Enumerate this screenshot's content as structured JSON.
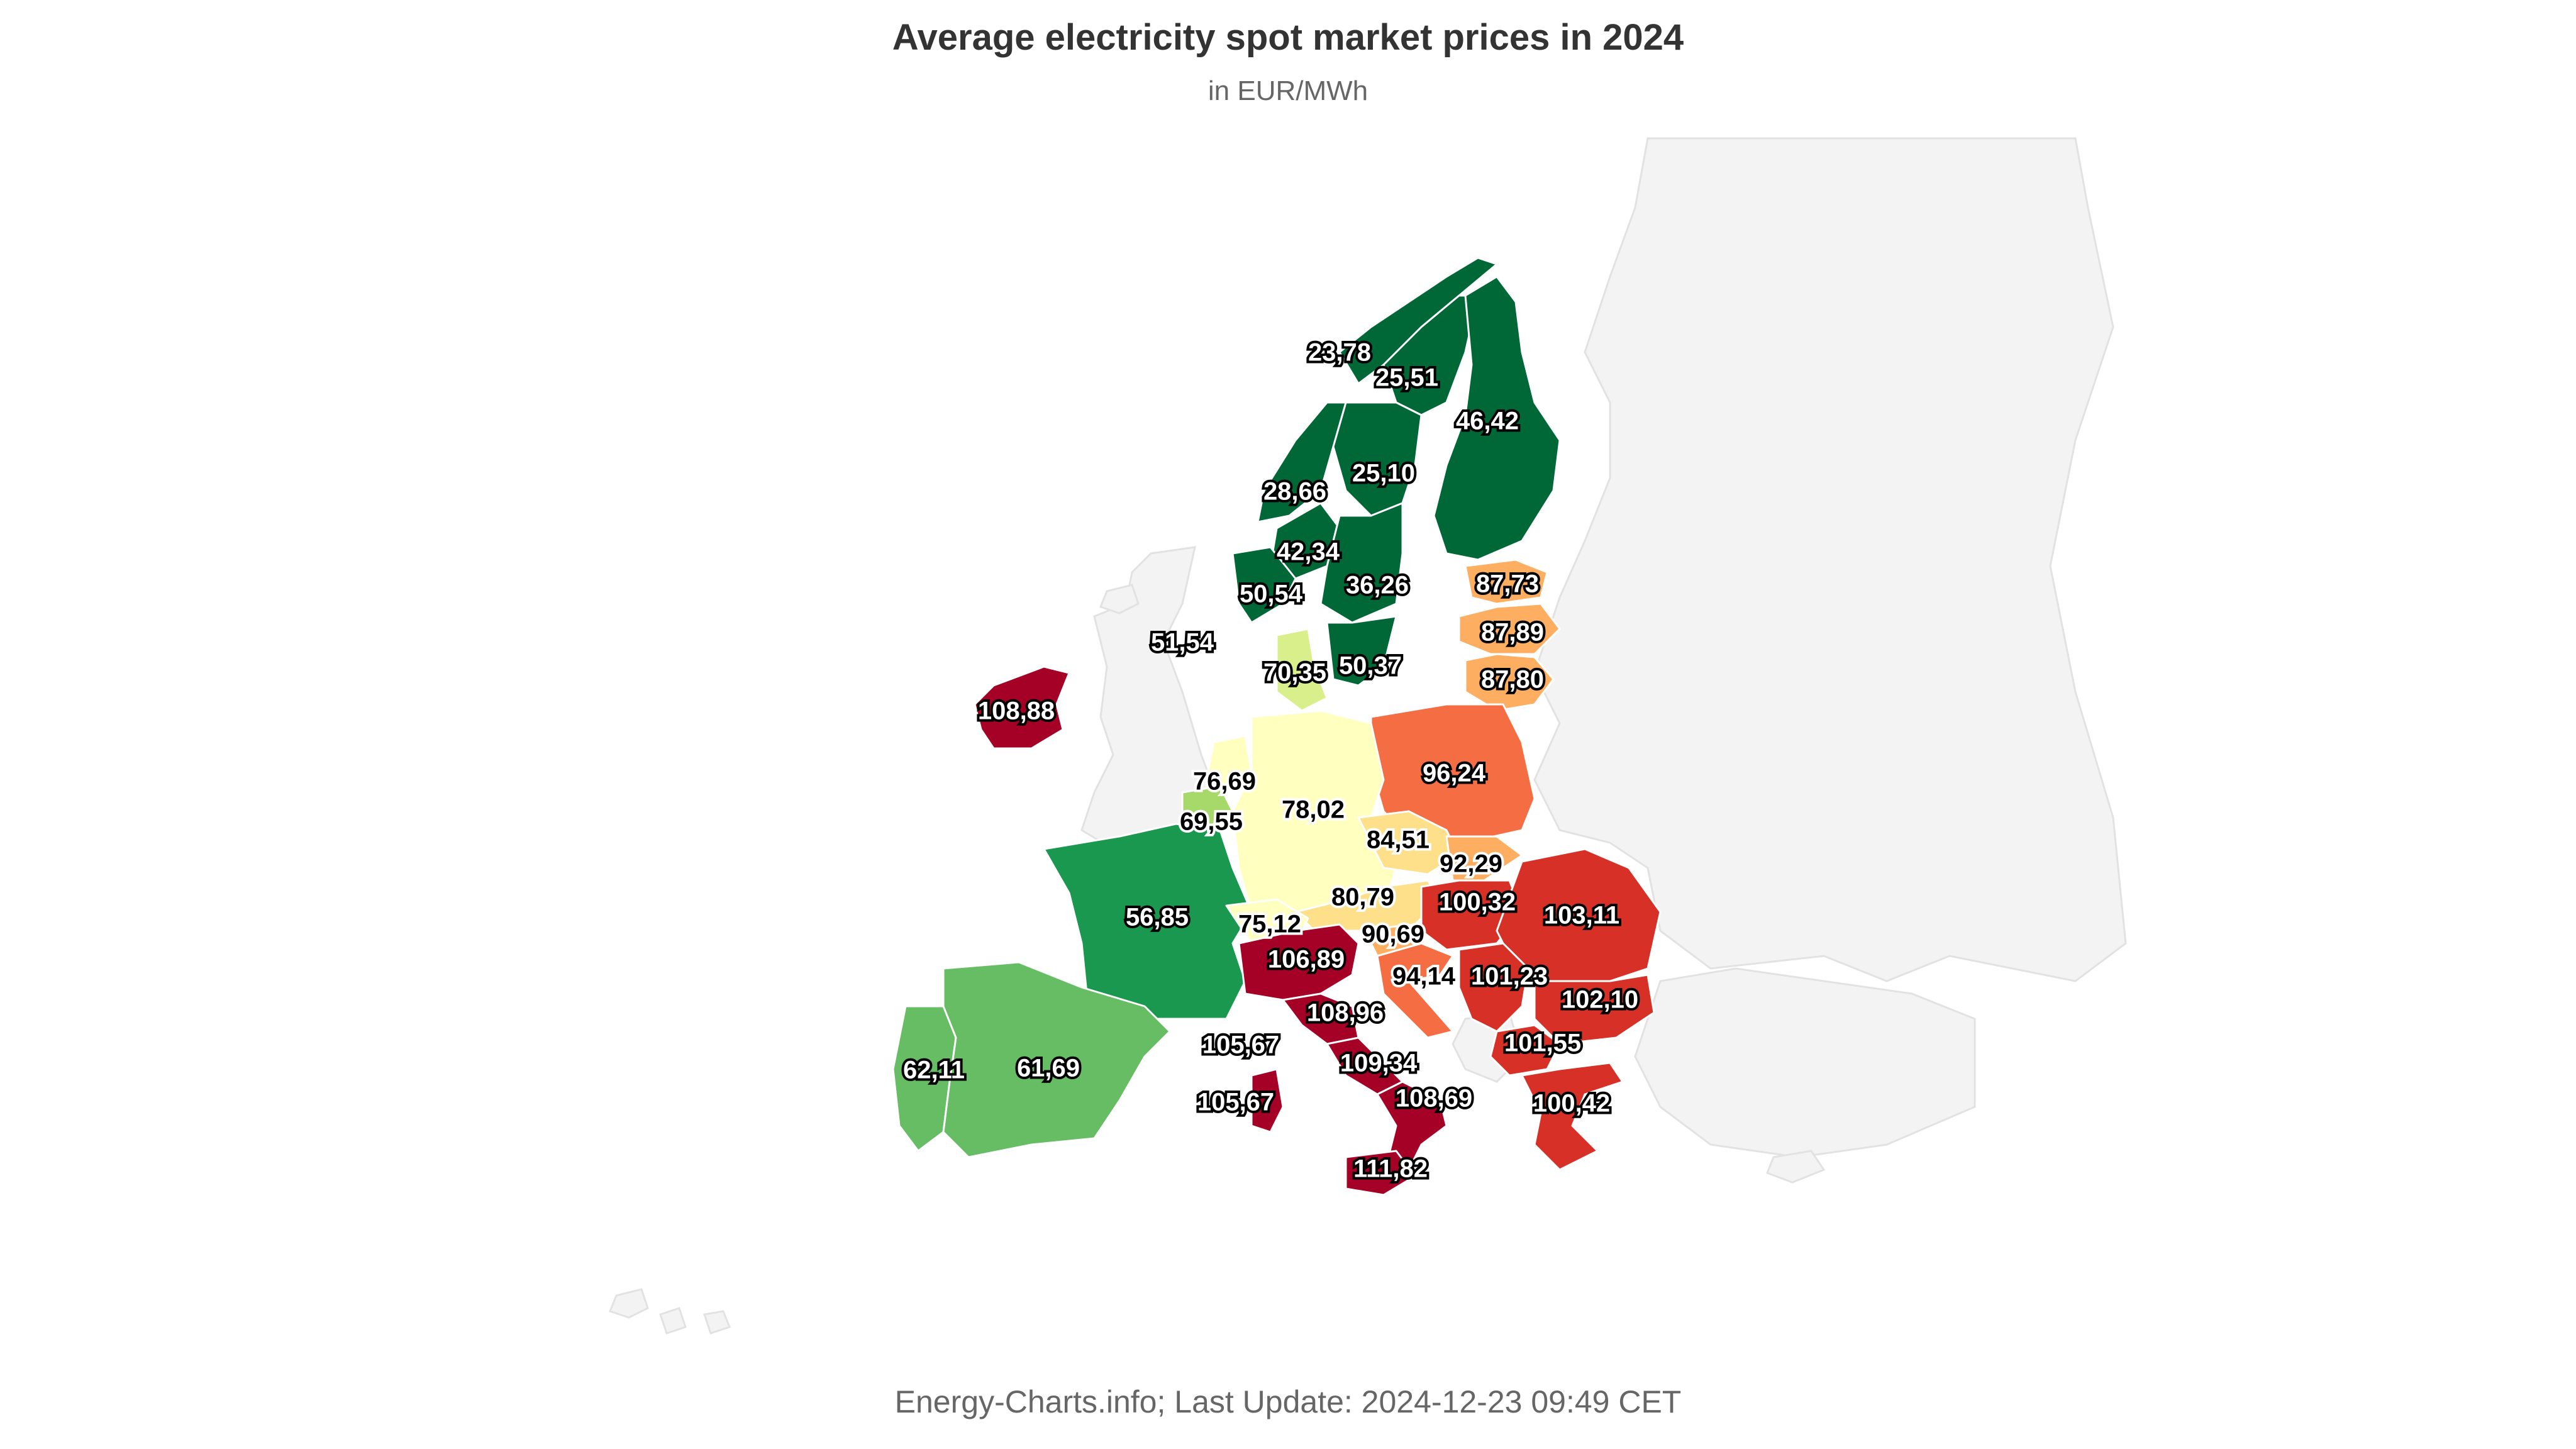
{
  "title": "Average electricity spot market prices in 2024",
  "subtitle": "in EUR/MWh",
  "footer": "Energy-Charts.info; Last Update: 2024-12-23 09:49 CET",
  "colors": {
    "dark_green": "#006837",
    "green": "#1a9850",
    "mid_green": "#66bd63",
    "light_green": "#a6d96a",
    "pale_green": "#d9ef8b",
    "pale_yellow": "#ffffbf",
    "yellow": "#fee08b",
    "light_orange": "#fdae61",
    "orange": "#f46d43",
    "red": "#d73027",
    "dark_red": "#a50026",
    "background_land": "#f3f3f3"
  },
  "bidding_zones": [
    {
      "zone": "NO4",
      "value": "23,78",
      "color": "#006837"
    },
    {
      "zone": "SE1",
      "value": "25,51",
      "color": "#006837"
    },
    {
      "zone": "FI",
      "value": "46,42",
      "color": "#006837"
    },
    {
      "zone": "SE2",
      "value": "25,10",
      "color": "#006837"
    },
    {
      "zone": "NO3",
      "value": "28,66",
      "color": "#006837"
    },
    {
      "zone": "NO1",
      "value": "42,34",
      "color": "#006837"
    },
    {
      "zone": "NO2",
      "value": "50,54",
      "color": "#006837"
    },
    {
      "zone": "SE3",
      "value": "36,26",
      "color": "#006837"
    },
    {
      "zone": "SE4",
      "value": "50,37",
      "color": "#006837"
    },
    {
      "zone": "NO5",
      "value": "51,54",
      "color": "#006837"
    },
    {
      "zone": "DK",
      "value": "70,35",
      "color": "#d9ef8b"
    },
    {
      "zone": "EE",
      "value": "87,73",
      "color": "#fdae61"
    },
    {
      "zone": "LV",
      "value": "87,89",
      "color": "#fdae61"
    },
    {
      "zone": "LT",
      "value": "87,80",
      "color": "#fdae61"
    },
    {
      "zone": "IE",
      "value": "108,88",
      "color": "#a50026"
    },
    {
      "zone": "PL",
      "value": "96,24",
      "color": "#f46d43"
    },
    {
      "zone": "NL",
      "value": "76,69",
      "color": "#ffffbf"
    },
    {
      "zone": "BE",
      "value": "69,55",
      "color": "#a6d96a"
    },
    {
      "zone": "DE-LU",
      "value": "78,02",
      "color": "#ffffbf"
    },
    {
      "zone": "CZ",
      "value": "84,51",
      "color": "#fee08b"
    },
    {
      "zone": "SK",
      "value": "92,29",
      "color": "#fdae61"
    },
    {
      "zone": "AT",
      "value": "80,79",
      "color": "#fee08b"
    },
    {
      "zone": "HU",
      "value": "100,32",
      "color": "#d73027"
    },
    {
      "zone": "RO",
      "value": "103,11",
      "color": "#d73027"
    },
    {
      "zone": "FR",
      "value": "56,85",
      "color": "#1a9850"
    },
    {
      "zone": "CH",
      "value": "75,12",
      "color": "#ffffbf"
    },
    {
      "zone": "SI",
      "value": "90,69",
      "color": "#fdae61"
    },
    {
      "zone": "IT-North",
      "value": "106,89",
      "color": "#a50026"
    },
    {
      "zone": "HR",
      "value": "94,14",
      "color": "#f46d43"
    },
    {
      "zone": "RS",
      "value": "101,23",
      "color": "#d73027"
    },
    {
      "zone": "BG",
      "value": "102,10",
      "color": "#d73027"
    },
    {
      "zone": "IT-Centre-North",
      "value": "108,96",
      "color": "#a50026"
    },
    {
      "zone": "IT-Centre-South",
      "value": "109,34",
      "color": "#a50026"
    },
    {
      "zone": "MK",
      "value": "101,55",
      "color": "#d73027"
    },
    {
      "zone": "IT-Sardinia",
      "value": "105,67",
      "color": "#a50026"
    },
    {
      "zone": "IT-Sardinia-2",
      "value": "105,67",
      "color": "#a50026"
    },
    {
      "zone": "IT-South",
      "value": "108,69",
      "color": "#a50026"
    },
    {
      "zone": "GR",
      "value": "100,42",
      "color": "#d73027"
    },
    {
      "zone": "IT-Sicily",
      "value": "111,82",
      "color": "#a50026"
    },
    {
      "zone": "PT",
      "value": "62,11",
      "color": "#66bd63"
    },
    {
      "zone": "ES",
      "value": "61,69",
      "color": "#66bd63"
    }
  ]
}
